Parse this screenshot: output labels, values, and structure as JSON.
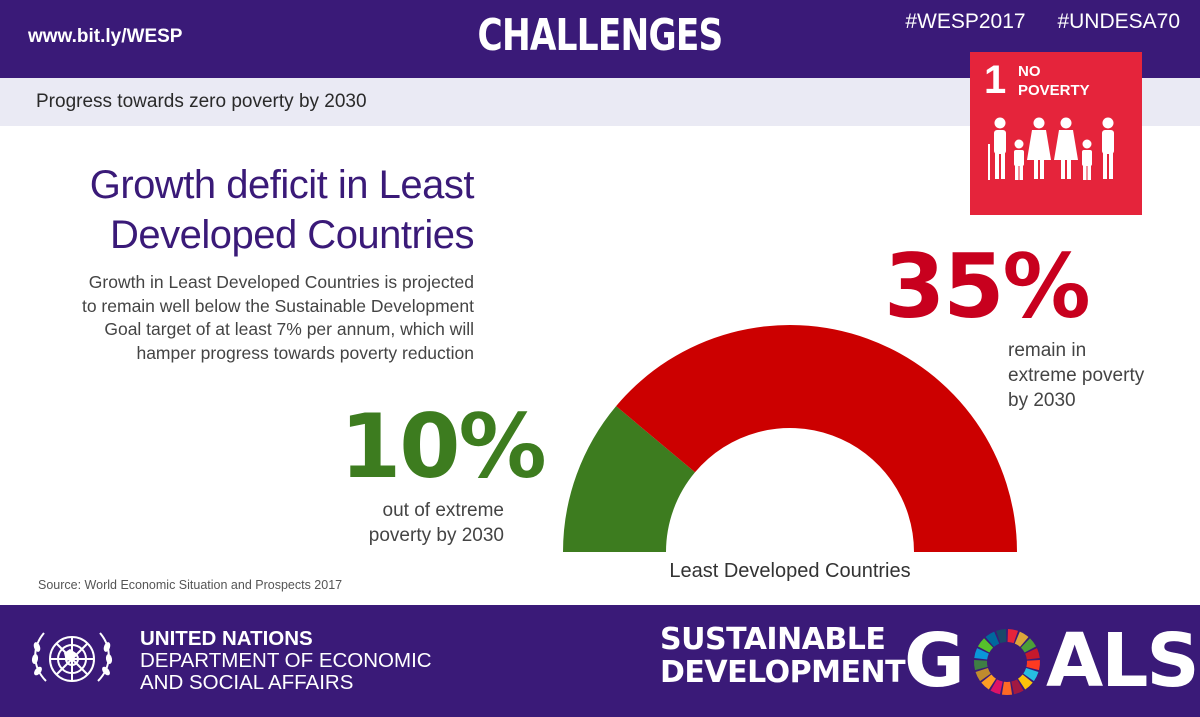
{
  "header": {
    "url": "www.bit.ly/WESP",
    "headline": "CHALLENGES",
    "hashtags": [
      "#WESP2017",
      "#UNDESA70"
    ]
  },
  "subheader": {
    "text": "Progress towards zero poverty by 2030"
  },
  "sdg_badge": {
    "number": "1",
    "label_line1": "NO",
    "label_line2": "POVERTY",
    "color": "#e5243b",
    "icon": "family-icon"
  },
  "content": {
    "title_line1": "Growth deficit in Least",
    "title_line2": "Developed Countries",
    "description_lines": [
      "Growth in Least Developed Countries is projected",
      "to remain well below the Sustainable Development",
      "Goal target of at least 7% per annum, which will",
      "hamper progress towards poverty reduction"
    ],
    "source": "Source: World Economic Situation and Prospects 2017"
  },
  "chart_data": {
    "type": "pie",
    "style": "half-donut",
    "categories": [
      "out of extreme poverty by 2030",
      "remain in extreme poverty by 2030"
    ],
    "values": [
      10,
      35
    ],
    "value_labels": [
      "10%",
      "35%"
    ],
    "caption_lines": [
      [
        "out of extreme",
        "poverty by 2030"
      ],
      [
        "remain in",
        "extreme poverty",
        "by 2030"
      ]
    ],
    "colors": [
      "#3d7c1f",
      "#cc0000"
    ],
    "xlabel": "Least Developed Countries",
    "title": "",
    "legend": "none"
  },
  "footer": {
    "org_line1": "UNITED NATIONS",
    "org_line2": "DEPARTMENT OF ECONOMIC",
    "org_line3": "AND SOCIAL AFFAIRS",
    "sdg_line1": "SUSTAINABLE",
    "sdg_line2": "DEVELOPMENT",
    "goals_g": "G",
    "goals_rest": "ALS",
    "emblem_icon": "un-emblem-icon"
  }
}
